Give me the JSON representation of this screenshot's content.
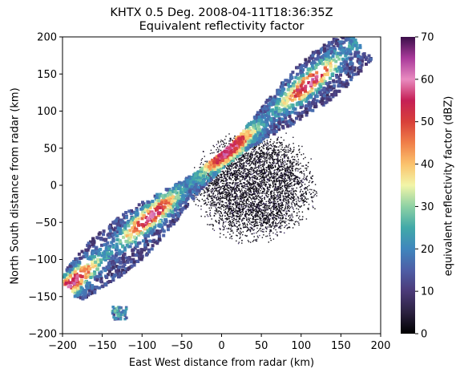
{
  "chart_data": {
    "type": "heatmap",
    "title": "KHTX 0.5 Deg. 2008-04-11T18:36:35Z",
    "subtitle": "Equivalent reflectivity factor",
    "xlabel": "East West distance from radar (km)",
    "ylabel": "North South distance from radar (km)",
    "xlim": [
      -200,
      200
    ],
    "ylim": [
      -200,
      200
    ],
    "xticks": [
      -200,
      -150,
      -100,
      -50,
      0,
      50,
      100,
      150,
      200
    ],
    "yticks": [
      -200,
      -150,
      -100,
      -50,
      0,
      50,
      100,
      150,
      200
    ],
    "grid": false,
    "colorbar": {
      "label": "equivalent reflectivity factor (dBZ)",
      "range": [
        0,
        70
      ],
      "ticks": [
        0,
        10,
        20,
        30,
        40,
        50,
        60,
        70
      ],
      "colormap": "spectral (dark at 0, purple-blue ~10-20, teal ~25, yellow ~35, orange ~45, red ~50, magenta ~60, dark purple 70)"
    },
    "features": [
      {
        "name": "squall line band",
        "from": [
          -200,
          -130
        ],
        "to": [
          165,
          200
        ],
        "peak_dbz": 60
      },
      {
        "name": "ground clutter near radar",
        "center": [
          40,
          0
        ],
        "radius_km": 80,
        "dbz_range": [
          0,
          10
        ]
      },
      {
        "name": "isolated cell",
        "center": [
          -130,
          -170
        ],
        "peak_dbz": 30
      }
    ],
    "stops": [
      {
        "v": 0,
        "c": "#000000"
      },
      {
        "v": 5,
        "c": "#2b2140"
      },
      {
        "v": 10,
        "c": "#4b3a78"
      },
      {
        "v": 15,
        "c": "#4e5ea6"
      },
      {
        "v": 20,
        "c": "#3f86bd"
      },
      {
        "v": 25,
        "c": "#41a9a8"
      },
      {
        "v": 30,
        "c": "#8ed1a4"
      },
      {
        "v": 35,
        "c": "#f2f5a8"
      },
      {
        "v": 40,
        "c": "#fbc26c"
      },
      {
        "v": 45,
        "c": "#f07f49"
      },
      {
        "v": 50,
        "c": "#d8403a"
      },
      {
        "v": 55,
        "c": "#c51f55"
      },
      {
        "v": 60,
        "c": "#e98bc0"
      },
      {
        "v": 65,
        "c": "#a93a9a"
      },
      {
        "v": 70,
        "c": "#3b0f4a"
      }
    ]
  }
}
